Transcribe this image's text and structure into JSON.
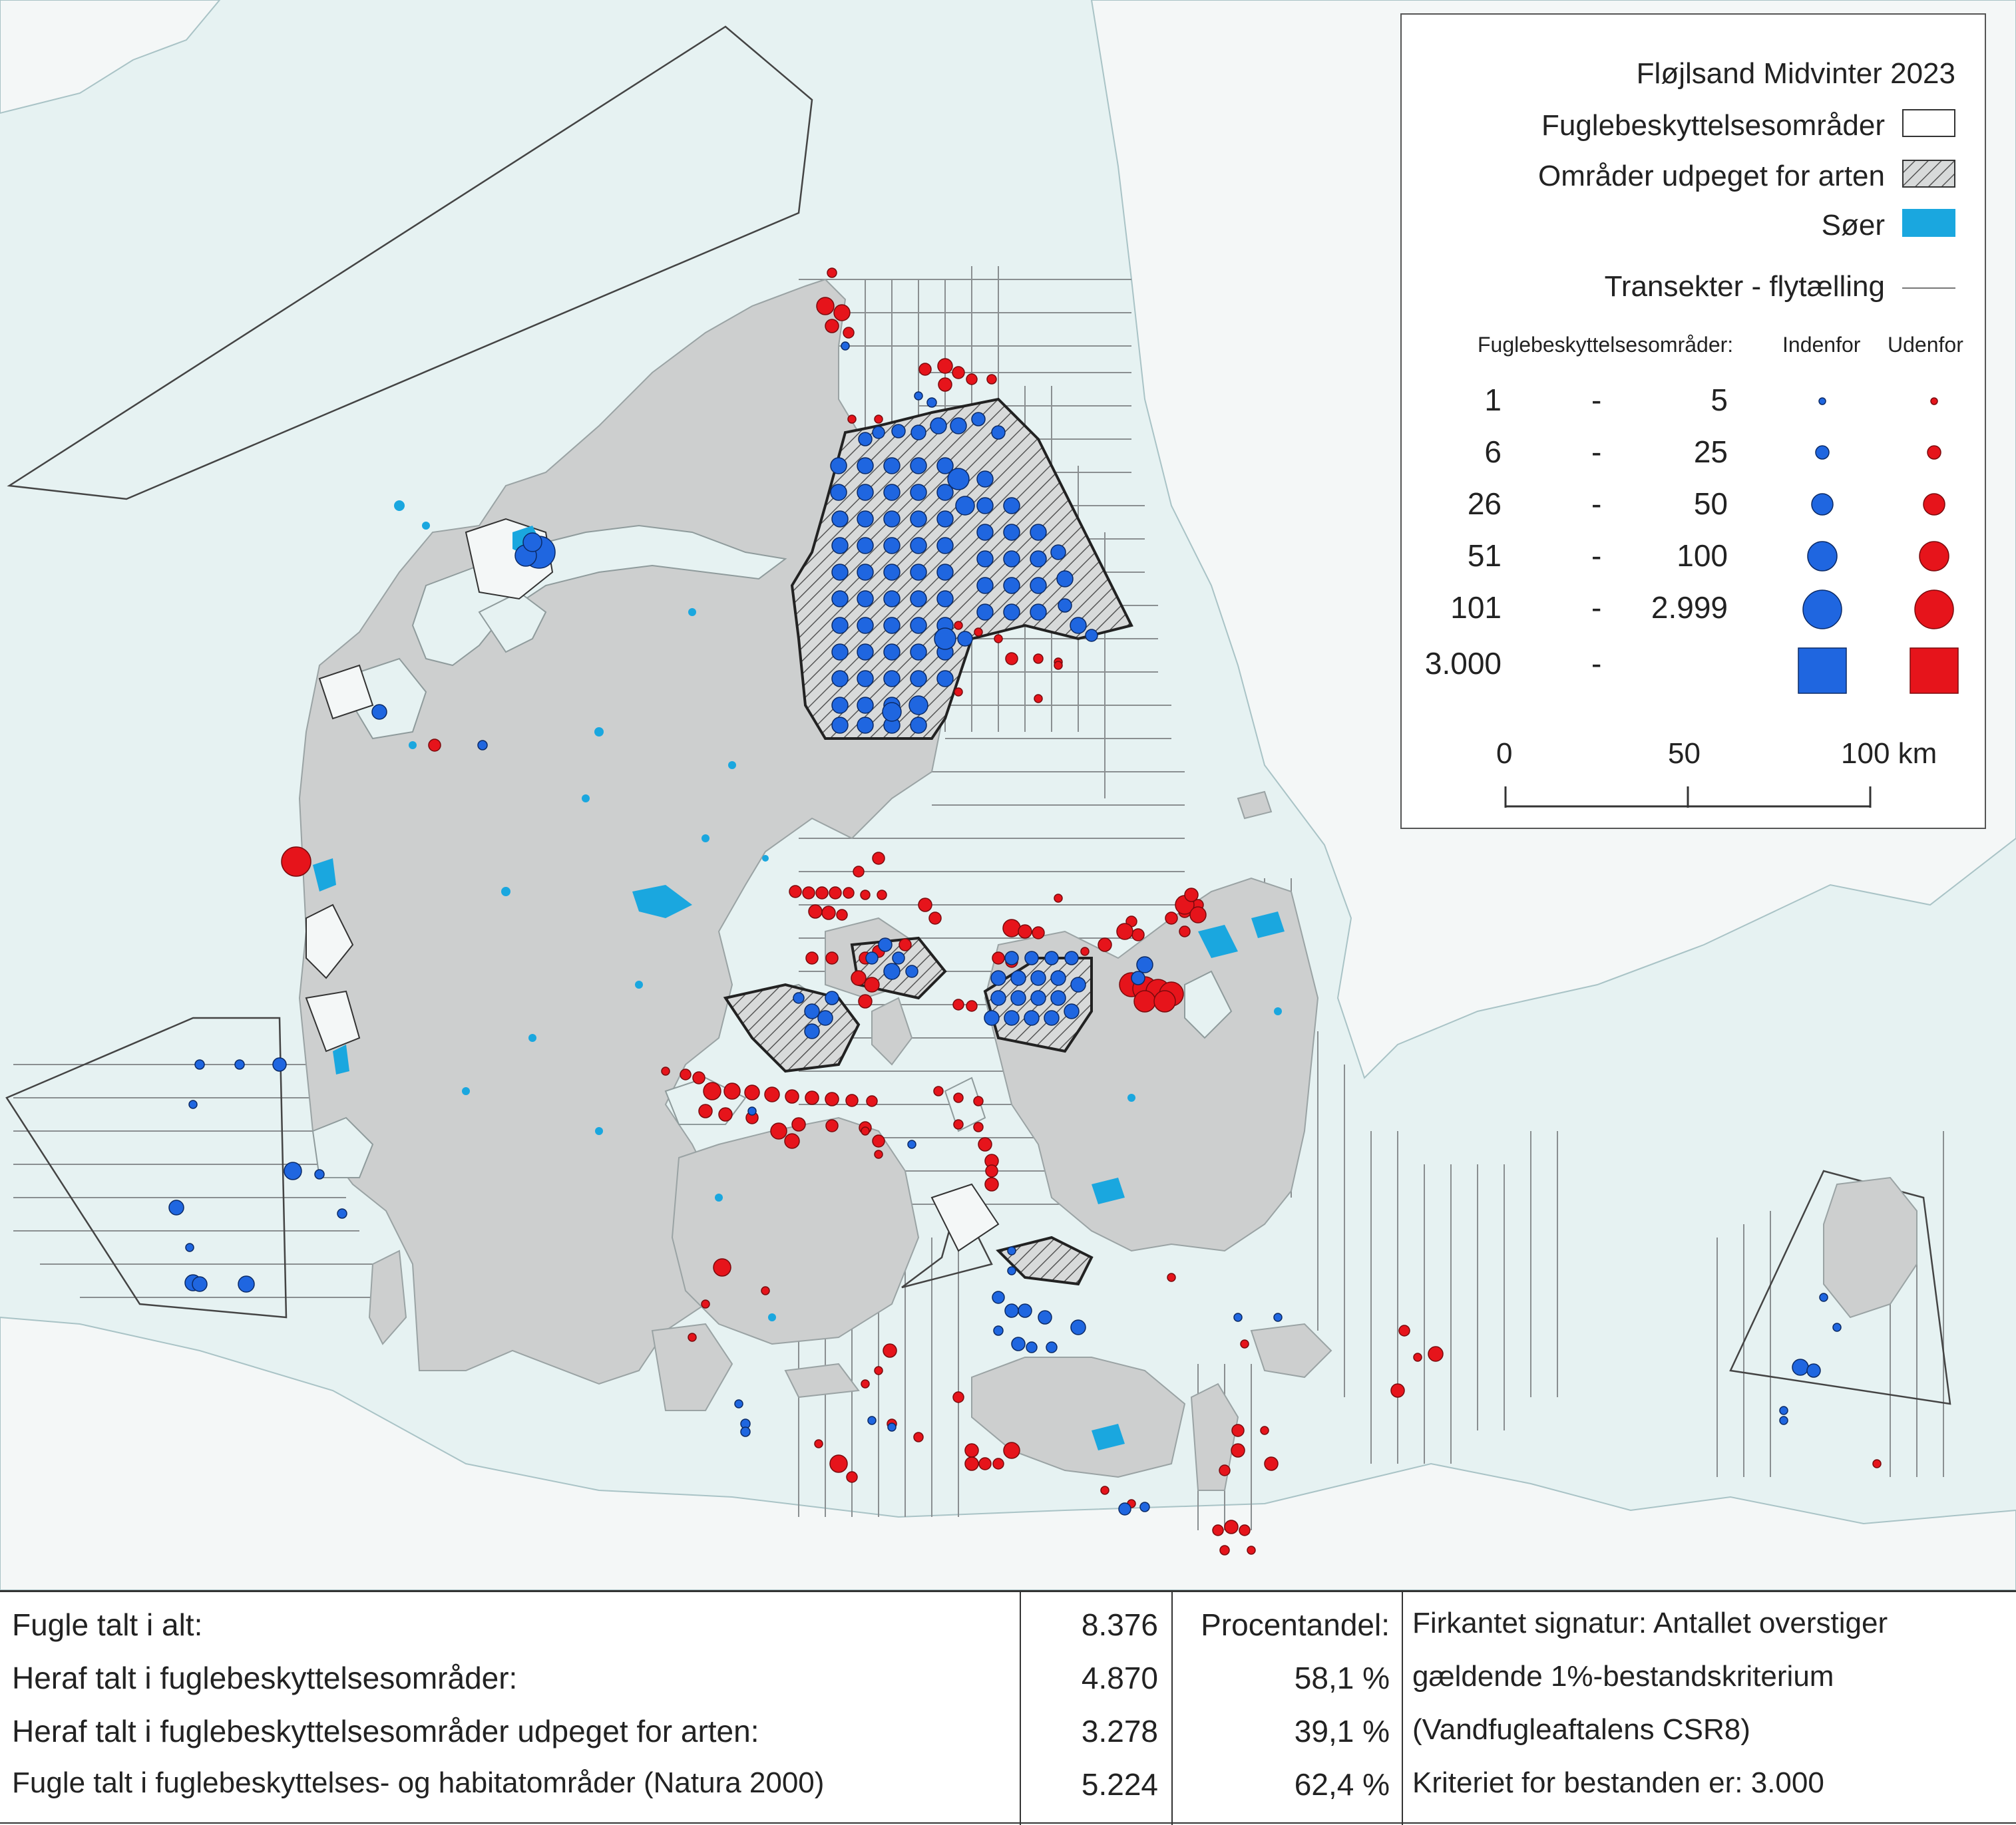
{
  "legend": {
    "title": "Fløjlsand Midvinter 2023",
    "protected_areas": "Fuglebeskyttelsesområder",
    "designated_areas": "Områder udpeget for arten",
    "lakes": "Søer",
    "transects": "Transekter - flytælling",
    "inside_outside_label": "Fuglebeskyttelsesområder:",
    "inside_label": "Indenfor",
    "outside_label": "Udenfor",
    "classes": [
      {
        "from": "1",
        "dash": "-",
        "to": "5"
      },
      {
        "from": "6",
        "dash": "-",
        "to": "25"
      },
      {
        "from": "26",
        "dash": "-",
        "to": "50"
      },
      {
        "from": "51",
        "dash": "-",
        "to": "100"
      },
      {
        "from": "101",
        "dash": "-",
        "to": "2.999"
      },
      {
        "from": "3.000",
        "dash": "-",
        "to": ""
      }
    ],
    "scale_labels": [
      "0",
      "50",
      "100 km"
    ],
    "colors": {
      "inside": "#1f66e0",
      "outside": "#e6141b",
      "lakes": "#1aa7df",
      "land": "#cdcfcf",
      "sea": "#e6f2f2"
    }
  },
  "stats": {
    "rows": [
      {
        "label": "Fugle talt i alt:",
        "value": "8.376",
        "pct": "Procentandel:"
      },
      {
        "label": "Heraf talt i fuglebeskyttelsesområder:",
        "value": "4.870",
        "pct": "58,1 %"
      },
      {
        "label": "Heraf talt i fuglebeskyttelsesområder udpeget for arten:",
        "value": "3.278",
        "pct": "39,1 %"
      },
      {
        "label": "Fugle talt i fuglebeskyttelses- og habitatområder (Natura 2000)",
        "value": "5.224",
        "pct": "62,4 %"
      }
    ],
    "note": [
      "Firkantet signatur: Antallet overstiger",
      "gældende 1%-bestandskriterium",
      "(Vandfugleaftalens CSR8)",
      "Kriteriet for bestanden er: 3.000"
    ]
  }
}
